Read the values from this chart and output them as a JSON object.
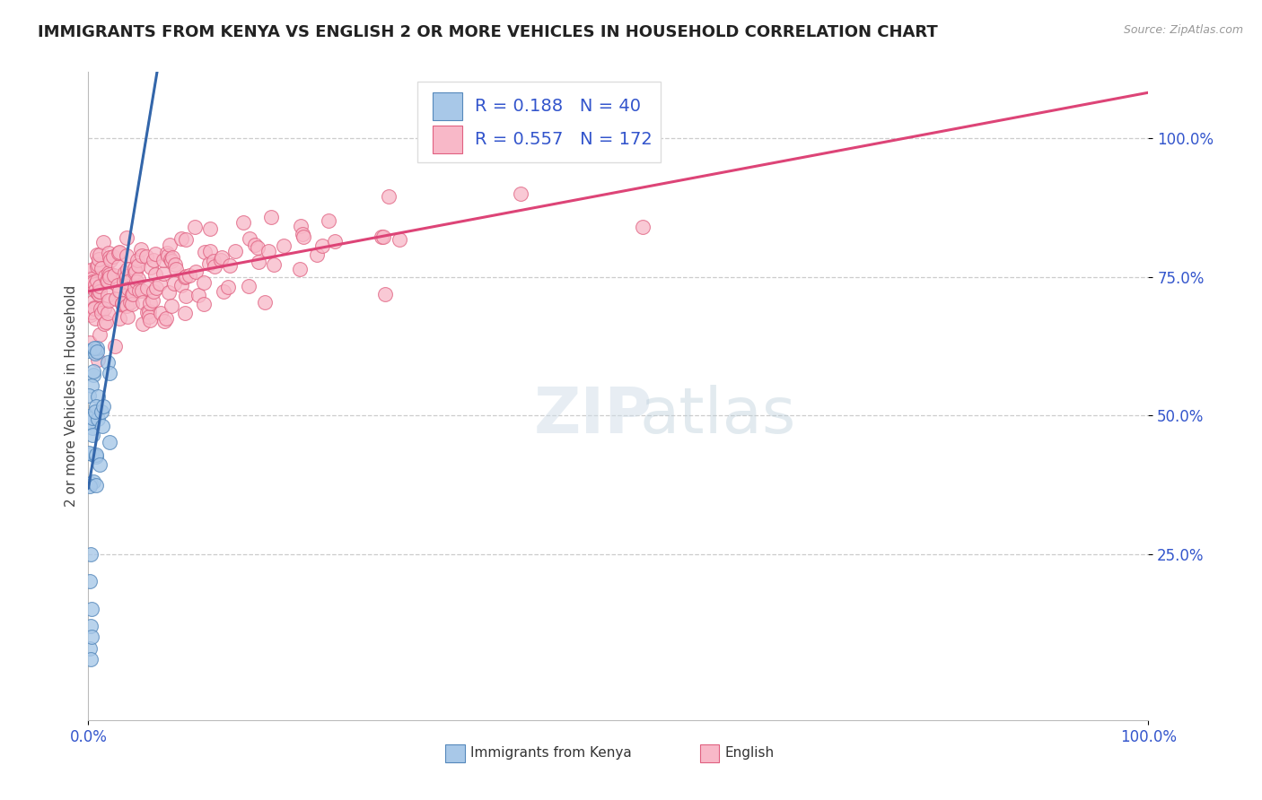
{
  "title": "IMMIGRANTS FROM KENYA VS ENGLISH 2 OR MORE VEHICLES IN HOUSEHOLD CORRELATION CHART",
  "source_text": "Source: ZipAtlas.com",
  "ylabel": "2 or more Vehicles in Household",
  "legend_label_blue": "Immigrants from Kenya",
  "legend_label_pink": "English",
  "r_blue": 0.188,
  "n_blue": 40,
  "r_pink": 0.557,
  "n_pink": 172,
  "color_blue_fill": "#a8c8e8",
  "color_blue_edge": "#5588bb",
  "color_pink_fill": "#f8b8c8",
  "color_pink_edge": "#e06080",
  "color_blue_line": "#3366aa",
  "color_pink_line": "#dd4477",
  "color_diag": "#99bbdd",
  "ytick_labels": [
    "25.0%",
    "50.0%",
    "75.0%",
    "100.0%"
  ],
  "ytick_values": [
    0.25,
    0.5,
    0.75,
    1.0
  ],
  "title_fontsize": 13,
  "axis_label_fontsize": 11,
  "tick_fontsize": 12,
  "legend_fontsize": 14,
  "legend_color": "#3355cc",
  "xlim": [
    0.0,
    1.0
  ],
  "ylim": [
    -0.05,
    1.12
  ]
}
